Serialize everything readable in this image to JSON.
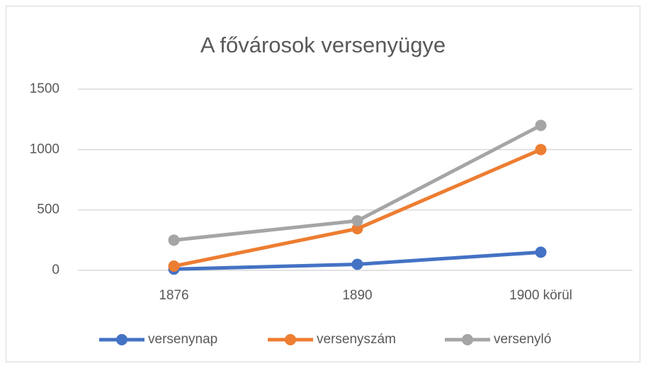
{
  "chart_data": {
    "type": "line",
    "title": "A fővárosok versenyügye",
    "categories": [
      "1876",
      "1890",
      "1900 körül"
    ],
    "series": [
      {
        "name": "versenynap",
        "color": "#4472c4",
        "values": [
          10,
          50,
          150
        ]
      },
      {
        "name": "versenyszám",
        "color": "#ed7d31",
        "values": [
          35,
          345,
          1000
        ]
      },
      {
        "name": "versenyló",
        "color": "#a5a5a5",
        "values": [
          250,
          410,
          1200
        ]
      }
    ],
    "ylim": [
      0,
      1500
    ],
    "yticks": [
      0,
      500,
      1000,
      1500
    ],
    "grid": true,
    "legend": "bottom"
  }
}
